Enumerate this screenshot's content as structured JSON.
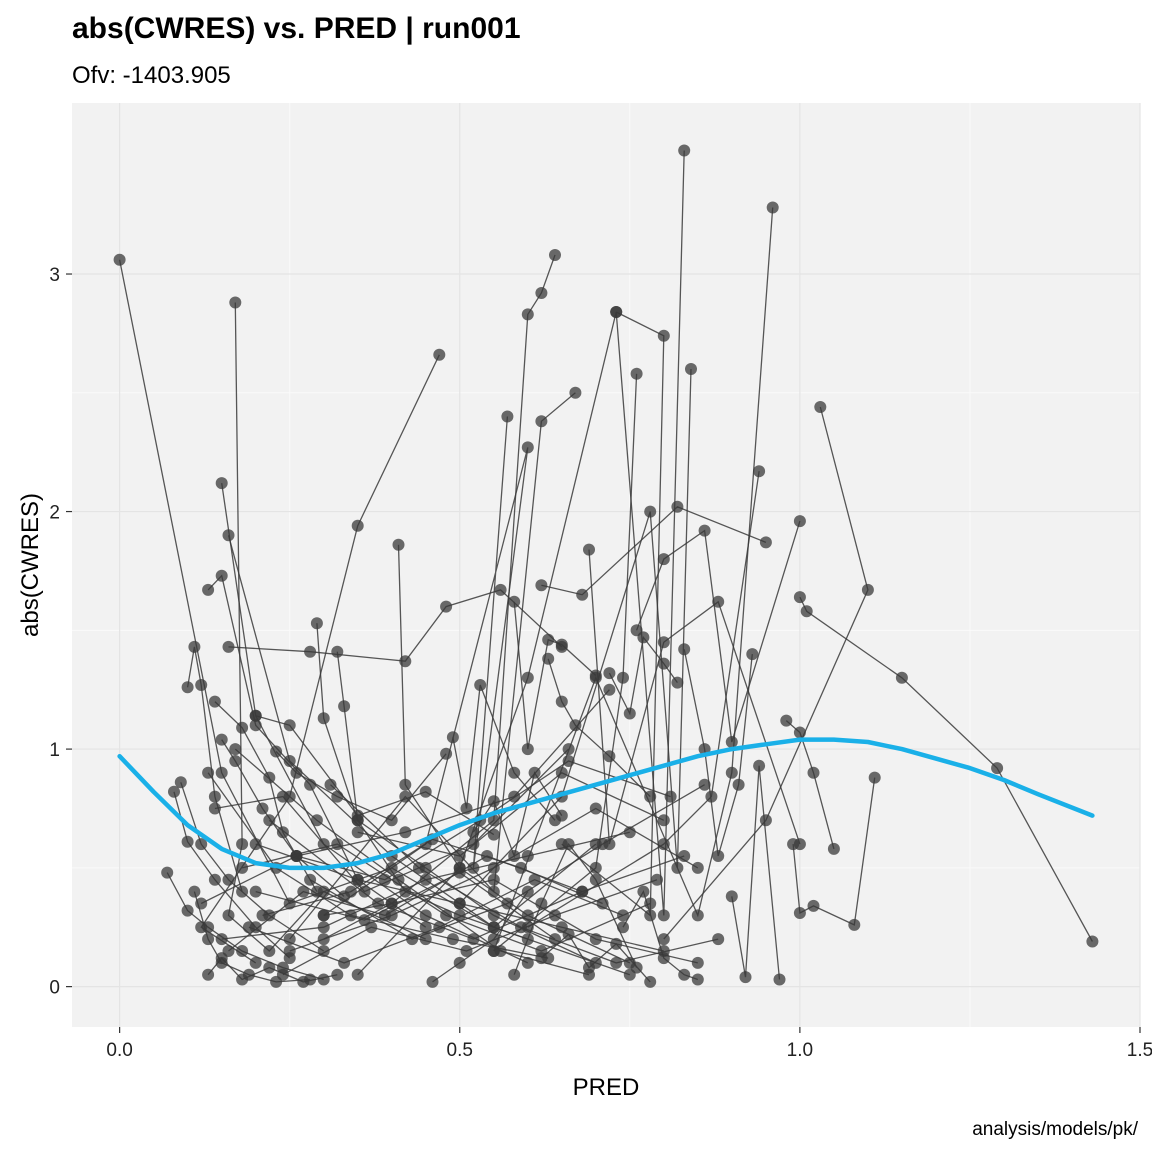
{
  "chart_data": {
    "type": "scatter",
    "title": "abs(CWRES) vs. PRED | run001",
    "subtitle": "Ofv: -1403.905",
    "caption": "analysis/models/pk/",
    "xlabel": "PRED",
    "ylabel": "abs(CWRES)",
    "xlim": [
      -0.07,
      1.5
    ],
    "ylim": [
      -0.17,
      3.72
    ],
    "x_ticks": [
      0.0,
      0.5,
      1.0,
      1.5
    ],
    "x_tick_labels": [
      "0.0",
      "0.5",
      "1.0",
      "1.5"
    ],
    "y_ticks": [
      0,
      1,
      2,
      3
    ],
    "y_tick_labels": [
      "0",
      "1",
      "2",
      "3"
    ],
    "grid": true,
    "panel_background": "#F2F2F2",
    "point_color": "#3A3A3A",
    "line_color": "#3A3A3A",
    "smooth_color": "#1AB0E8",
    "series": [
      {
        "x": [
          0.0,
          0.15,
          0.25,
          0.4,
          0.55,
          0.7
        ],
        "y": [
          3.06,
          0.9,
          0.35,
          0.5,
          0.25,
          0.6
        ]
      },
      {
        "x": [
          0.17,
          0.18,
          0.16,
          0.22,
          0.3,
          0.45
        ],
        "y": [
          2.88,
          0.6,
          0.3,
          0.15,
          0.4,
          0.2
        ]
      },
      {
        "x": [
          0.47,
          0.35,
          0.25,
          0.12,
          0.2
        ],
        "y": [
          2.66,
          1.94,
          0.8,
          0.25,
          0.1
        ]
      },
      {
        "x": [
          0.64,
          0.62,
          0.6,
          0.55,
          0.4,
          0.3
        ],
        "y": [
          3.08,
          2.92,
          2.83,
          0.7,
          0.35,
          0.2
        ]
      },
      {
        "x": [
          0.83,
          0.8,
          0.73,
          0.6,
          0.5,
          0.35
        ],
        "y": [
          3.52,
          0.3,
          2.84,
          1.3,
          0.5,
          0.05
        ]
      },
      {
        "x": [
          0.96,
          0.9,
          0.85,
          0.7,
          0.55
        ],
        "y": [
          3.28,
          0.9,
          0.3,
          1.3,
          0.15
        ]
      },
      {
        "x": [
          0.73,
          0.8,
          0.78,
          0.65
        ],
        "y": [
          2.84,
          2.74,
          0.3,
          0.6
        ]
      },
      {
        "x": [
          1.03,
          1.1,
          0.95,
          0.8
        ],
        "y": [
          2.44,
          1.67,
          0.7,
          0.2
        ]
      },
      {
        "x": [
          0.94,
          0.87,
          0.8,
          0.6
        ],
        "y": [
          2.17,
          0.8,
          0.6,
          0.25
        ]
      },
      {
        "x": [
          0.57,
          0.52,
          0.6,
          0.45,
          0.3
        ],
        "y": [
          2.4,
          0.5,
          2.27,
          0.6,
          0.3
        ]
      },
      {
        "x": [
          0.67,
          0.62,
          0.55,
          0.42,
          0.25
        ],
        "y": [
          2.5,
          2.38,
          0.4,
          0.8,
          0.2
        ]
      },
      {
        "x": [
          0.76,
          0.74,
          0.7,
          0.55
        ],
        "y": [
          2.58,
          1.3,
          0.5,
          0.15
        ]
      },
      {
        "x": [
          0.84,
          0.82,
          0.78,
          0.65,
          0.5
        ],
        "y": [
          2.6,
          0.5,
          2.0,
          0.8,
          0.35
        ]
      },
      {
        "x": [
          0.15,
          0.2,
          0.3,
          0.45,
          0.6
        ],
        "y": [
          2.12,
          1.14,
          0.6,
          0.3,
          0.1
        ]
      },
      {
        "x": [
          0.16,
          0.25,
          0.4,
          0.55,
          0.75
        ],
        "y": [
          1.9,
          0.95,
          0.55,
          0.25,
          0.05
        ]
      },
      {
        "x": [
          0.41,
          0.42,
          0.5,
          0.6,
          0.75
        ],
        "y": [
          1.86,
          0.85,
          0.5,
          0.3,
          0.1
        ]
      },
      {
        "x": [
          0.62,
          0.68,
          0.82,
          0.95
        ],
        "y": [
          1.69,
          1.65,
          2.02,
          1.87
        ]
      },
      {
        "x": [
          0.76,
          0.8,
          0.86,
          0.9,
          1.0
        ],
        "y": [
          1.5,
          1.8,
          1.92,
          1.03,
          1.96
        ]
      },
      {
        "x": [
          0.69,
          0.72,
          0.8,
          0.88,
          1.0
        ],
        "y": [
          1.84,
          0.6,
          1.45,
          1.62,
          0.6
        ]
      },
      {
        "x": [
          0.16,
          0.28,
          0.42,
          0.48,
          0.56,
          0.65
        ],
        "y": [
          1.43,
          1.41,
          1.37,
          1.6,
          1.67,
          1.43
        ]
      },
      {
        "x": [
          0.29,
          0.3,
          0.35,
          0.42,
          0.5,
          0.6
        ],
        "y": [
          1.53,
          1.13,
          0.7,
          0.4,
          0.3,
          0.2
        ]
      },
      {
        "x": [
          0.13,
          0.15,
          0.2,
          0.28,
          0.35,
          0.45
        ],
        "y": [
          1.67,
          1.73,
          1.1,
          0.85,
          0.45,
          0.25
        ]
      },
      {
        "x": [
          0.1,
          0.11,
          0.12,
          0.14,
          0.18
        ],
        "y": [
          1.26,
          1.43,
          1.27,
          0.8,
          0.4
        ]
      },
      {
        "x": [
          0.32,
          0.33,
          0.35,
          0.45,
          0.55,
          0.7
        ],
        "y": [
          1.41,
          1.18,
          0.7,
          0.5,
          0.3,
          0.1
        ]
      },
      {
        "x": [
          0.09,
          0.12,
          0.16,
          0.22,
          0.3
        ],
        "y": [
          0.86,
          0.6,
          0.45,
          0.3,
          0.15
        ]
      },
      {
        "x": [
          0.08,
          0.1,
          0.14,
          0.2,
          0.25
        ],
        "y": [
          0.82,
          0.61,
          0.45,
          0.25,
          0.12
        ]
      },
      {
        "x": [
          0.07,
          0.1,
          0.13,
          0.18,
          0.24,
          0.3
        ],
        "y": [
          0.48,
          0.32,
          0.25,
          0.15,
          0.08,
          0.03
        ]
      },
      {
        "x": [
          0.11,
          0.13,
          0.15,
          0.19,
          0.23,
          0.28
        ],
        "y": [
          0.4,
          0.2,
          0.1,
          0.05,
          0.02,
          0.03
        ]
      },
      {
        "x": [
          0.13,
          0.15,
          0.18,
          0.22,
          0.27,
          0.32
        ],
        "y": [
          0.05,
          0.12,
          0.03,
          0.08,
          0.02,
          0.05
        ]
      },
      {
        "x": [
          0.46,
          0.5,
          0.55,
          0.6
        ],
        "y": [
          0.02,
          0.1,
          0.2,
          0.4
        ]
      },
      {
        "x": [
          0.2,
          0.25,
          0.35,
          0.45,
          0.55
        ],
        "y": [
          1.14,
          1.1,
          0.72,
          0.82,
          0.64
        ]
      },
      {
        "x": [
          0.23,
          0.26,
          0.32,
          0.4,
          0.48
        ],
        "y": [
          0.99,
          0.9,
          0.8,
          0.7,
          0.98
        ]
      },
      {
        "x": [
          0.49,
          0.51,
          0.53,
          0.58,
          0.64
        ],
        "y": [
          1.05,
          0.75,
          1.27,
          0.9,
          0.7
        ]
      },
      {
        "x": [
          0.58,
          0.6,
          0.63,
          0.65,
          0.7
        ],
        "y": [
          1.62,
          1.0,
          1.46,
          1.44,
          1.31
        ]
      },
      {
        "x": [
          0.63,
          0.65,
          0.67,
          0.72,
          0.78
        ],
        "y": [
          1.38,
          1.2,
          1.1,
          0.97,
          0.8
        ]
      },
      {
        "x": [
          0.72,
          0.75,
          0.77,
          0.8,
          0.82
        ],
        "y": [
          1.32,
          1.15,
          1.47,
          1.36,
          1.28
        ]
      },
      {
        "x": [
          0.83,
          0.86,
          0.88,
          0.91,
          0.93
        ],
        "y": [
          1.42,
          1.0,
          0.55,
          0.85,
          1.4
        ]
      },
      {
        "x": [
          0.98,
          1.0,
          1.02,
          1.05
        ],
        "y": [
          1.12,
          1.07,
          0.9,
          0.58
        ]
      },
      {
        "x": [
          0.99,
          1.0,
          1.02,
          1.08,
          1.11
        ],
        "y": [
          0.6,
          0.31,
          0.34,
          0.26,
          0.88
        ]
      },
      {
        "x": [
          0.9,
          0.92,
          0.94,
          0.97
        ],
        "y": [
          0.38,
          0.04,
          0.93,
          0.03
        ]
      },
      {
        "x": [
          1.0,
          1.01,
          1.15,
          1.29,
          1.43
        ],
        "y": [
          1.64,
          1.58,
          1.3,
          0.92,
          0.19
        ]
      },
      {
        "x": [
          0.3,
          0.4,
          0.55,
          0.7,
          0.85
        ],
        "y": [
          0.3,
          0.35,
          0.45,
          0.2,
          0.1
        ]
      },
      {
        "x": [
          0.2,
          0.35,
          0.5,
          0.65,
          0.8
        ],
        "y": [
          0.6,
          0.45,
          0.35,
          0.25,
          0.15
        ]
      },
      {
        "x": [
          0.15,
          0.3,
          0.45,
          0.6,
          0.75
        ],
        "y": [
          0.2,
          0.25,
          0.45,
          0.55,
          0.65
        ]
      },
      {
        "x": [
          0.25,
          0.4,
          0.55,
          0.7,
          0.85
        ],
        "y": [
          0.15,
          0.3,
          0.5,
          0.75,
          0.5
        ]
      },
      {
        "x": [
          0.35,
          0.5,
          0.65,
          0.8
        ],
        "y": [
          0.65,
          0.55,
          0.9,
          0.7
        ]
      },
      {
        "x": [
          0.22,
          0.38,
          0.52,
          0.68,
          0.83
        ],
        "y": [
          0.7,
          0.35,
          0.2,
          0.4,
          0.55
        ]
      },
      {
        "x": [
          0.18,
          0.32,
          0.48,
          0.62,
          0.78
        ],
        "y": [
          0.5,
          0.6,
          0.3,
          0.15,
          0.35
        ]
      },
      {
        "x": [
          0.12,
          0.26,
          0.42,
          0.58,
          0.72
        ],
        "y": [
          0.35,
          0.55,
          0.65,
          0.8,
          1.25
        ]
      },
      {
        "x": [
          0.28,
          0.43,
          0.57,
          0.71,
          0.86
        ],
        "y": [
          0.45,
          0.2,
          0.35,
          0.6,
          0.85
        ]
      },
      {
        "x": [
          0.14,
          0.24,
          0.36,
          0.52,
          0.66
        ],
        "y": [
          0.75,
          0.8,
          0.4,
          0.6,
          1.0
        ]
      },
      {
        "x": [
          0.19,
          0.33,
          0.47,
          0.61,
          0.74
        ],
        "y": [
          0.25,
          0.1,
          0.25,
          0.45,
          0.3
        ]
      },
      {
        "x": [
          0.24,
          0.37,
          0.51,
          0.64,
          0.79
        ],
        "y": [
          0.05,
          0.25,
          0.15,
          0.3,
          0.45
        ]
      },
      {
        "x": [
          0.31,
          0.44,
          0.59,
          0.73,
          0.88
        ],
        "y": [
          0.85,
          0.5,
          0.25,
          0.1,
          0.2
        ]
      },
      {
        "x": [
          0.17,
          0.29,
          0.41,
          0.56,
          0.69
        ],
        "y": [
          1.0,
          0.7,
          0.45,
          0.15,
          0.05
        ]
      },
      {
        "x": [
          0.21,
          0.34,
          0.46,
          0.59,
          0.71
        ],
        "y": [
          0.3,
          0.4,
          0.62,
          0.5,
          0.35
        ]
      },
      {
        "x": [
          0.26,
          0.39,
          0.53,
          0.66,
          0.81
        ],
        "y": [
          0.55,
          0.45,
          0.7,
          0.95,
          0.8
        ]
      },
      {
        "x": [
          0.13,
          0.23,
          0.34,
          0.49,
          0.63
        ],
        "y": [
          0.9,
          0.5,
          0.3,
          0.2,
          0.12
        ]
      },
      {
        "x": [
          0.16,
          0.27,
          0.39,
          0.54,
          0.68
        ],
        "y": [
          0.15,
          0.4,
          0.3,
          0.55,
          0.4
        ]
      },
      {
        "x": [
          0.2,
          0.36,
          0.5,
          0.64
        ],
        "y": [
          0.4,
          0.28,
          0.48,
          0.2
        ]
      },
      {
        "x": [
          0.15,
          0.17,
          0.21,
          0.26,
          0.33
        ],
        "y": [
          1.04,
          0.95,
          0.75,
          0.55,
          0.38
        ]
      },
      {
        "x": [
          0.14,
          0.18,
          0.22,
          0.24,
          0.29
        ],
        "y": [
          1.2,
          1.09,
          0.88,
          0.65,
          0.4
        ]
      },
      {
        "x": [
          0.58,
          0.62,
          0.66,
          0.7,
          0.76
        ],
        "y": [
          0.05,
          0.35,
          0.6,
          0.45,
          0.08
        ]
      },
      {
        "x": [
          0.62,
          0.66,
          0.69,
          0.73,
          0.78
        ],
        "y": [
          0.12,
          0.22,
          0.08,
          0.18,
          0.02
        ]
      },
      {
        "x": [
          0.74,
          0.77,
          0.8,
          0.83,
          0.85
        ],
        "y": [
          0.25,
          0.4,
          0.12,
          0.05,
          0.03
        ]
      },
      {
        "x": [
          0.52,
          0.55,
          0.58,
          0.61,
          0.65
        ],
        "y": [
          0.65,
          0.78,
          0.55,
          0.9,
          0.72
        ]
      }
    ],
    "smooth": {
      "x": [
        0.0,
        0.05,
        0.1,
        0.15,
        0.2,
        0.25,
        0.3,
        0.35,
        0.4,
        0.45,
        0.5,
        0.55,
        0.6,
        0.65,
        0.7,
        0.75,
        0.8,
        0.85,
        0.9,
        0.95,
        1.0,
        1.05,
        1.1,
        1.15,
        1.2,
        1.25,
        1.3,
        1.35,
        1.43
      ],
      "y": [
        0.97,
        0.82,
        0.68,
        0.58,
        0.52,
        0.5,
        0.5,
        0.52,
        0.56,
        0.62,
        0.68,
        0.73,
        0.77,
        0.81,
        0.85,
        0.89,
        0.93,
        0.97,
        1.0,
        1.02,
        1.04,
        1.04,
        1.03,
        1.0,
        0.96,
        0.92,
        0.87,
        0.81,
        0.72
      ]
    }
  }
}
